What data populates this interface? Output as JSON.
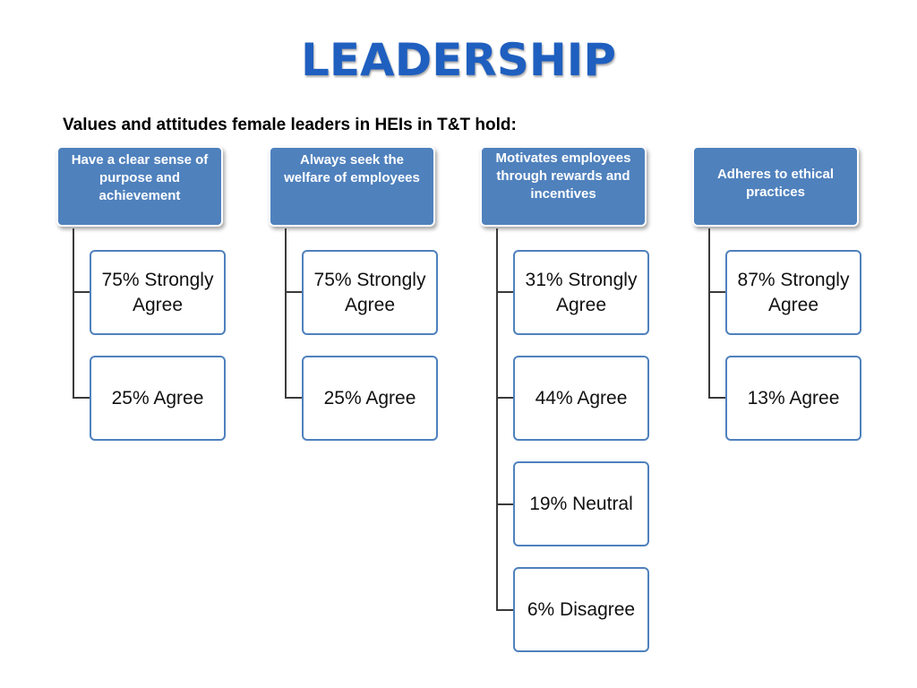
{
  "title": "LEADERSHIP",
  "subtitle": "Values and attitudes female leaders in HEIs in T&T hold:",
  "columns": [
    {
      "header": "Have a clear sense of purpose and achievement",
      "items": [
        "75% Strongly Agree",
        "25% Agree"
      ]
    },
    {
      "header": "Always seek the welfare of employees",
      "items": [
        "75% Strongly Agree",
        "25% Agree"
      ]
    },
    {
      "header": "Motivates employees through rewards and incentives",
      "items": [
        "31% Strongly Agree",
        "44% Agree",
        "19% Neutral",
        "6% Disagree"
      ]
    },
    {
      "header": "Adheres to ethical practices",
      "items": [
        "87% Strongly Agree",
        "13% Agree"
      ]
    }
  ],
  "colors": {
    "title": "#1f5fbf",
    "header_fill": "#4f81bd",
    "child_border": "#4f81bd",
    "connector": "#3a3a3a"
  }
}
